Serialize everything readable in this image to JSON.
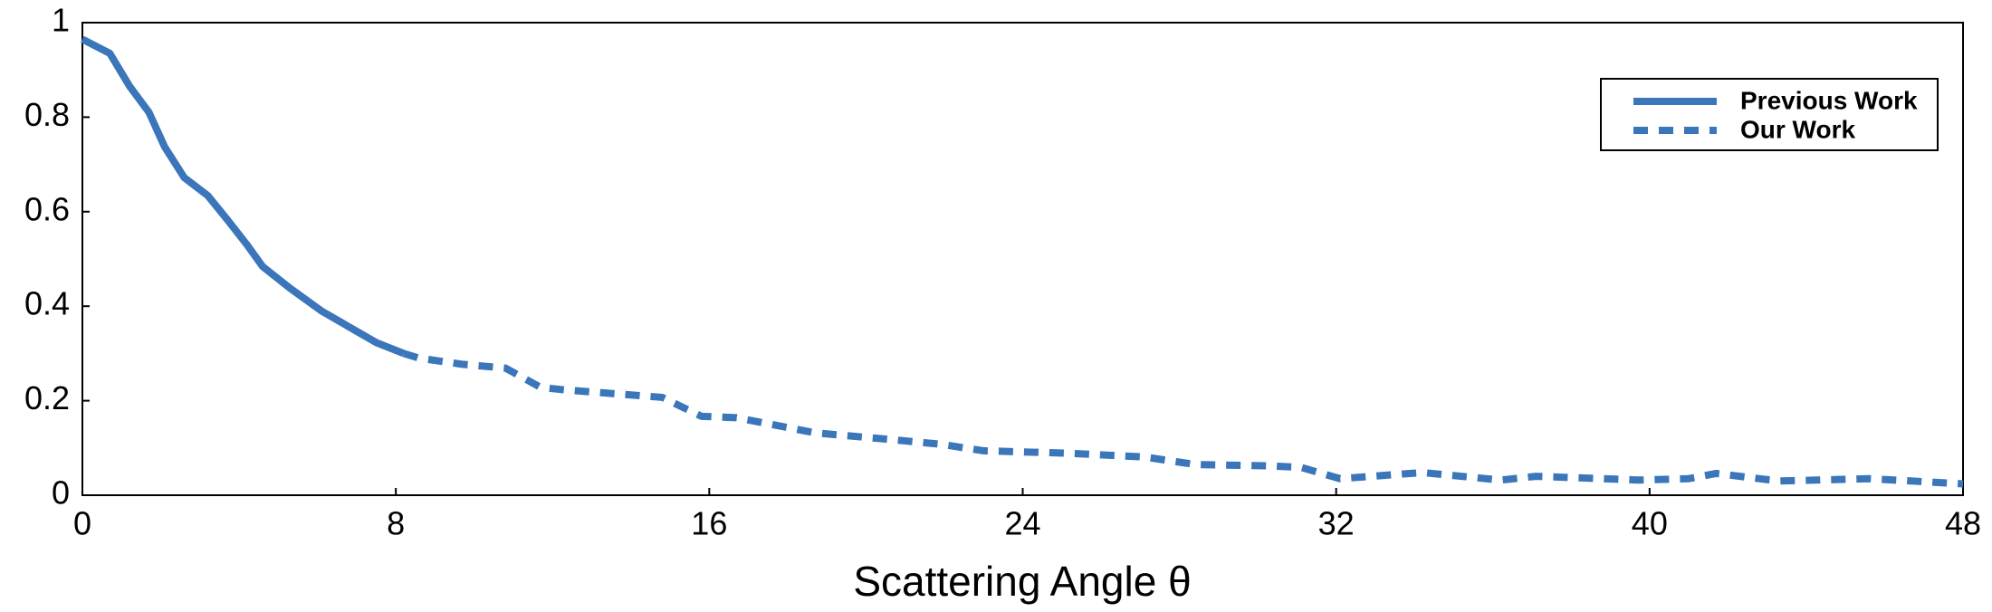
{
  "chart_data": {
    "type": "line",
    "xlabel": "Scattering Angle θ",
    "x": [
      0,
      0.7,
      1.2,
      1.7,
      2.1,
      2.6,
      3.2,
      3.7,
      4.2,
      4.6,
      5.3,
      6.1,
      7.5,
      8.2,
      8.6,
      9.7,
      10.8,
      11.7,
      12.3,
      14.8,
      15.8,
      16.7,
      18.7,
      20.6,
      21.9,
      23.0,
      25.1,
      27.1,
      28.4,
      30.3,
      31.1,
      32.1,
      34.2,
      36.2,
      37.1,
      38.8,
      39.7,
      41.0,
      41.7,
      43.3,
      45.6,
      48
    ],
    "series": [
      {
        "name": "Previous Work",
        "color": "#3a76b9",
        "dash": false,
        "values": [
          0.965,
          0.935,
          0.866,
          0.81,
          0.737,
          0.672,
          0.634,
          0.583,
          0.53,
          0.484,
          0.438,
          0.39,
          0.323,
          0.3,
          null,
          null,
          null,
          null,
          null,
          null,
          null,
          null,
          null,
          null,
          null,
          null,
          null,
          null,
          null,
          null,
          null,
          null,
          null,
          null,
          null,
          null,
          null,
          null,
          null,
          null,
          null,
          null
        ]
      },
      {
        "name": "Our Work",
        "color": "#3a76b9",
        "dash": true,
        "values": [
          null,
          null,
          null,
          null,
          null,
          null,
          null,
          null,
          null,
          null,
          null,
          null,
          null,
          0.3,
          0.29,
          0.277,
          0.269,
          0.228,
          0.223,
          0.207,
          0.167,
          0.164,
          0.132,
          0.118,
          0.108,
          0.094,
          0.089,
          0.081,
          0.065,
          0.062,
          0.059,
          0.035,
          0.048,
          0.032,
          0.04,
          0.035,
          0.032,
          0.035,
          0.046,
          0.03,
          0.035,
          0.024
        ]
      }
    ],
    "xlim": [
      0,
      48
    ],
    "xticks": [
      0,
      8,
      16,
      24,
      32,
      40,
      48
    ],
    "ylim": [
      0,
      1
    ],
    "yticks": [
      0,
      0.2,
      0.4,
      0.6,
      0.8,
      1
    ],
    "grid": false,
    "legend": "upper right"
  }
}
